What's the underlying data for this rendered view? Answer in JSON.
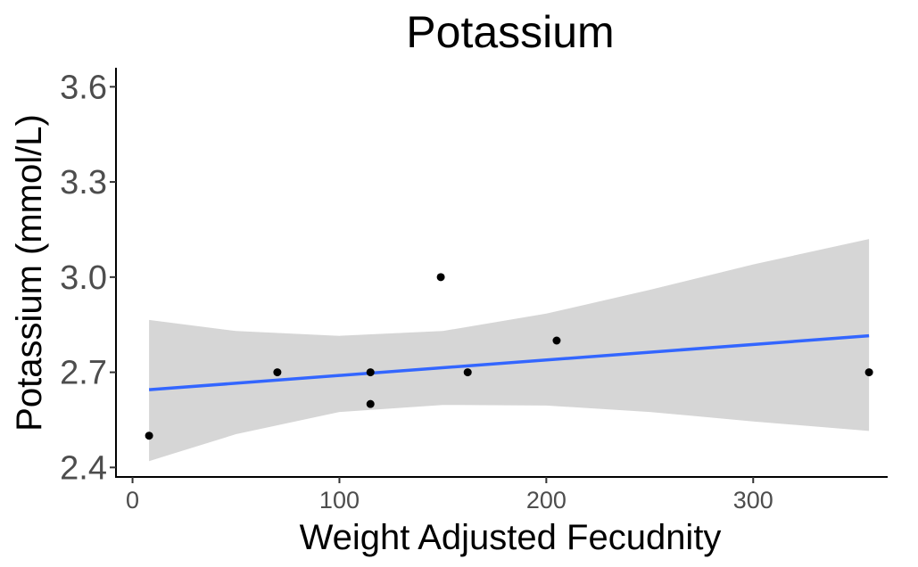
{
  "chart_data": {
    "type": "scatter",
    "title": "Potassium",
    "xlabel": "Weight Adjusted Fecudnity",
    "ylabel": "Potassium (mmol/L)",
    "xlim": [
      -8,
      365
    ],
    "ylim": [
      2.37,
      3.66
    ],
    "x_ticks": [
      0,
      100,
      200,
      300
    ],
    "x_tick_labels": [
      "0",
      "100",
      "200",
      "300"
    ],
    "y_ticks": [
      2.4,
      2.7,
      3.0,
      3.3,
      3.6
    ],
    "y_tick_labels": [
      "2.4",
      "2.7",
      "3.0",
      "3.3",
      "3.6"
    ],
    "grid": false,
    "legend": "none",
    "points": [
      {
        "x": 8,
        "y": 2.5
      },
      {
        "x": 70,
        "y": 2.7
      },
      {
        "x": 115,
        "y": 2.7
      },
      {
        "x": 115,
        "y": 2.6
      },
      {
        "x": 149,
        "y": 3.0
      },
      {
        "x": 162,
        "y": 2.7
      },
      {
        "x": 205,
        "y": 2.8
      },
      {
        "x": 356,
        "y": 2.7
      }
    ],
    "trend": {
      "method": "linear",
      "x": [
        8,
        356
      ],
      "y": [
        2.645,
        2.815
      ]
    },
    "confidence_band": {
      "x": [
        8,
        50,
        100,
        150,
        200,
        250,
        300,
        356
      ],
      "lower": [
        2.42,
        2.505,
        2.575,
        2.597,
        2.595,
        2.575,
        2.545,
        2.515
      ],
      "upper": [
        2.865,
        2.83,
        2.815,
        2.83,
        2.885,
        2.96,
        3.04,
        3.12
      ]
    },
    "colors": {
      "point": "#000000",
      "trend_line": "#3366ff",
      "band": "#d6d6d6",
      "axis": "#000000",
      "tick_text": "#4d4d4d"
    }
  }
}
